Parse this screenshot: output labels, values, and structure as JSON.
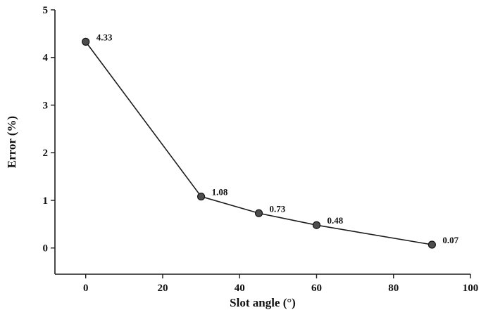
{
  "figure": {
    "background": "#ffffff"
  },
  "chart_data": {
    "type": "line",
    "title": "",
    "xlabel": "Slot angle (°)",
    "ylabel": "Error (%)",
    "x": [
      0,
      30,
      45,
      60,
      90
    ],
    "y": [
      4.33,
      1.08,
      0.73,
      0.48,
      0.07
    ],
    "point_labels": [
      "4.33",
      "1.08",
      "0.73",
      "0.48",
      "0.07"
    ],
    "xlim": [
      -8,
      100
    ],
    "ylim": [
      -0.55,
      5
    ],
    "xticks": [
      0,
      20,
      40,
      60,
      80,
      100
    ],
    "yticks": [
      0,
      1,
      2,
      3,
      4,
      5
    ],
    "grid": false,
    "legend": "none",
    "colors": {
      "line": "#1c1c1c",
      "marker_fill": "#4d4d4d",
      "marker_edge": "#141414",
      "axis": "#1c1c1c",
      "text": "#111111"
    }
  }
}
